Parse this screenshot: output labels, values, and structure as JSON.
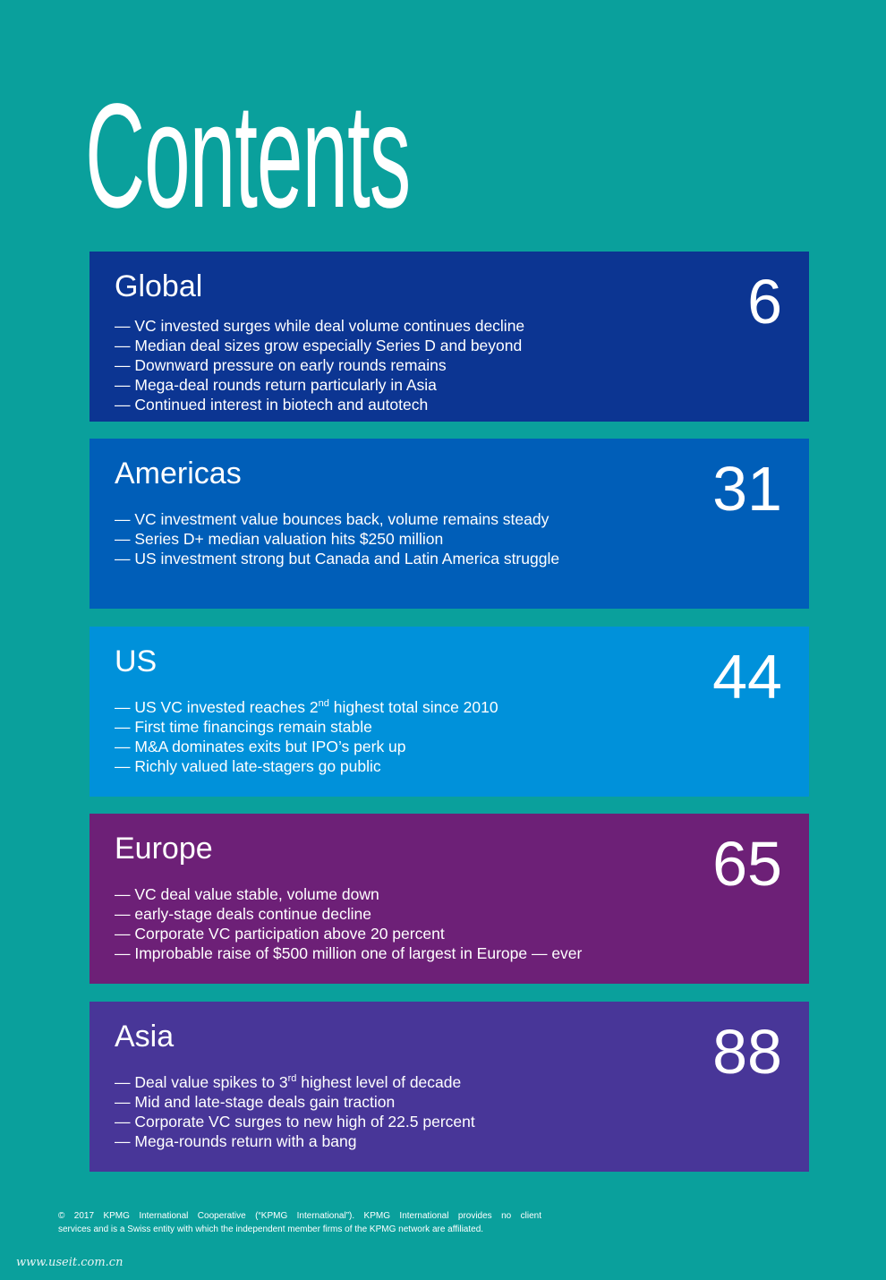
{
  "title": "Contents",
  "sections": [
    {
      "name": "Global",
      "page": "6",
      "bullets": [
        {
          "text": "— VC invested surges while deal volume continues decline"
        },
        {
          "text": "— Median deal sizes grow especially Series D and beyond"
        },
        {
          "text": "— Downward pressure on early rounds remains"
        },
        {
          "text": "— Mega-deal rounds return particularly in Asia"
        },
        {
          "text": "— Continued interest in biotech and autotech"
        }
      ]
    },
    {
      "name": "Americas",
      "page": "31",
      "bullets": [
        {
          "text": "— VC investment value bounces back, volume remains steady"
        },
        {
          "text": "— Series D+ median valuation hits $250 million"
        },
        {
          "text": "— US investment strong but Canada and Latin America struggle"
        }
      ]
    },
    {
      "name": "US",
      "page": "44",
      "bullets": [
        {
          "text": "— US VC invested reaches 2",
          "sup": "nd",
          "rest": " highest total since 2010"
        },
        {
          "text": "— First time financings remain stable"
        },
        {
          "text": "— M&A dominates exits but IPO’s perk up"
        },
        {
          "text": "— Richly valued late-stagers go public"
        }
      ]
    },
    {
      "name": "Europe",
      "page": "65",
      "bullets": [
        {
          "text": "— VC deal value stable, volume down"
        },
        {
          "text": "— early-stage deals continue decline"
        },
        {
          "text": "— Corporate VC participation above 20 percent"
        },
        {
          "text": "— Improbable raise of $500 million one of largest in Europe — ever"
        }
      ]
    },
    {
      "name": "Asia",
      "page": "88",
      "bullets": [
        {
          "text": "— Deal value spikes to 3",
          "sup": "rd",
          "rest": " highest level of decade"
        },
        {
          "text": "— Mid and late-stage deals gain traction"
        },
        {
          "text": "— Corporate VC surges to new high of 22.5 percent"
        },
        {
          "text": "— Mega-rounds return with a bang"
        }
      ]
    }
  ],
  "footer": {
    "line1": "© 2017 KPMG International Cooperative (“KPMG International”). KPMG International provides no client",
    "line2": "services and is a Swiss entity with which the independent member firms of the KPMG network are affiliated."
  },
  "watermark": "www.useit.com.cn"
}
